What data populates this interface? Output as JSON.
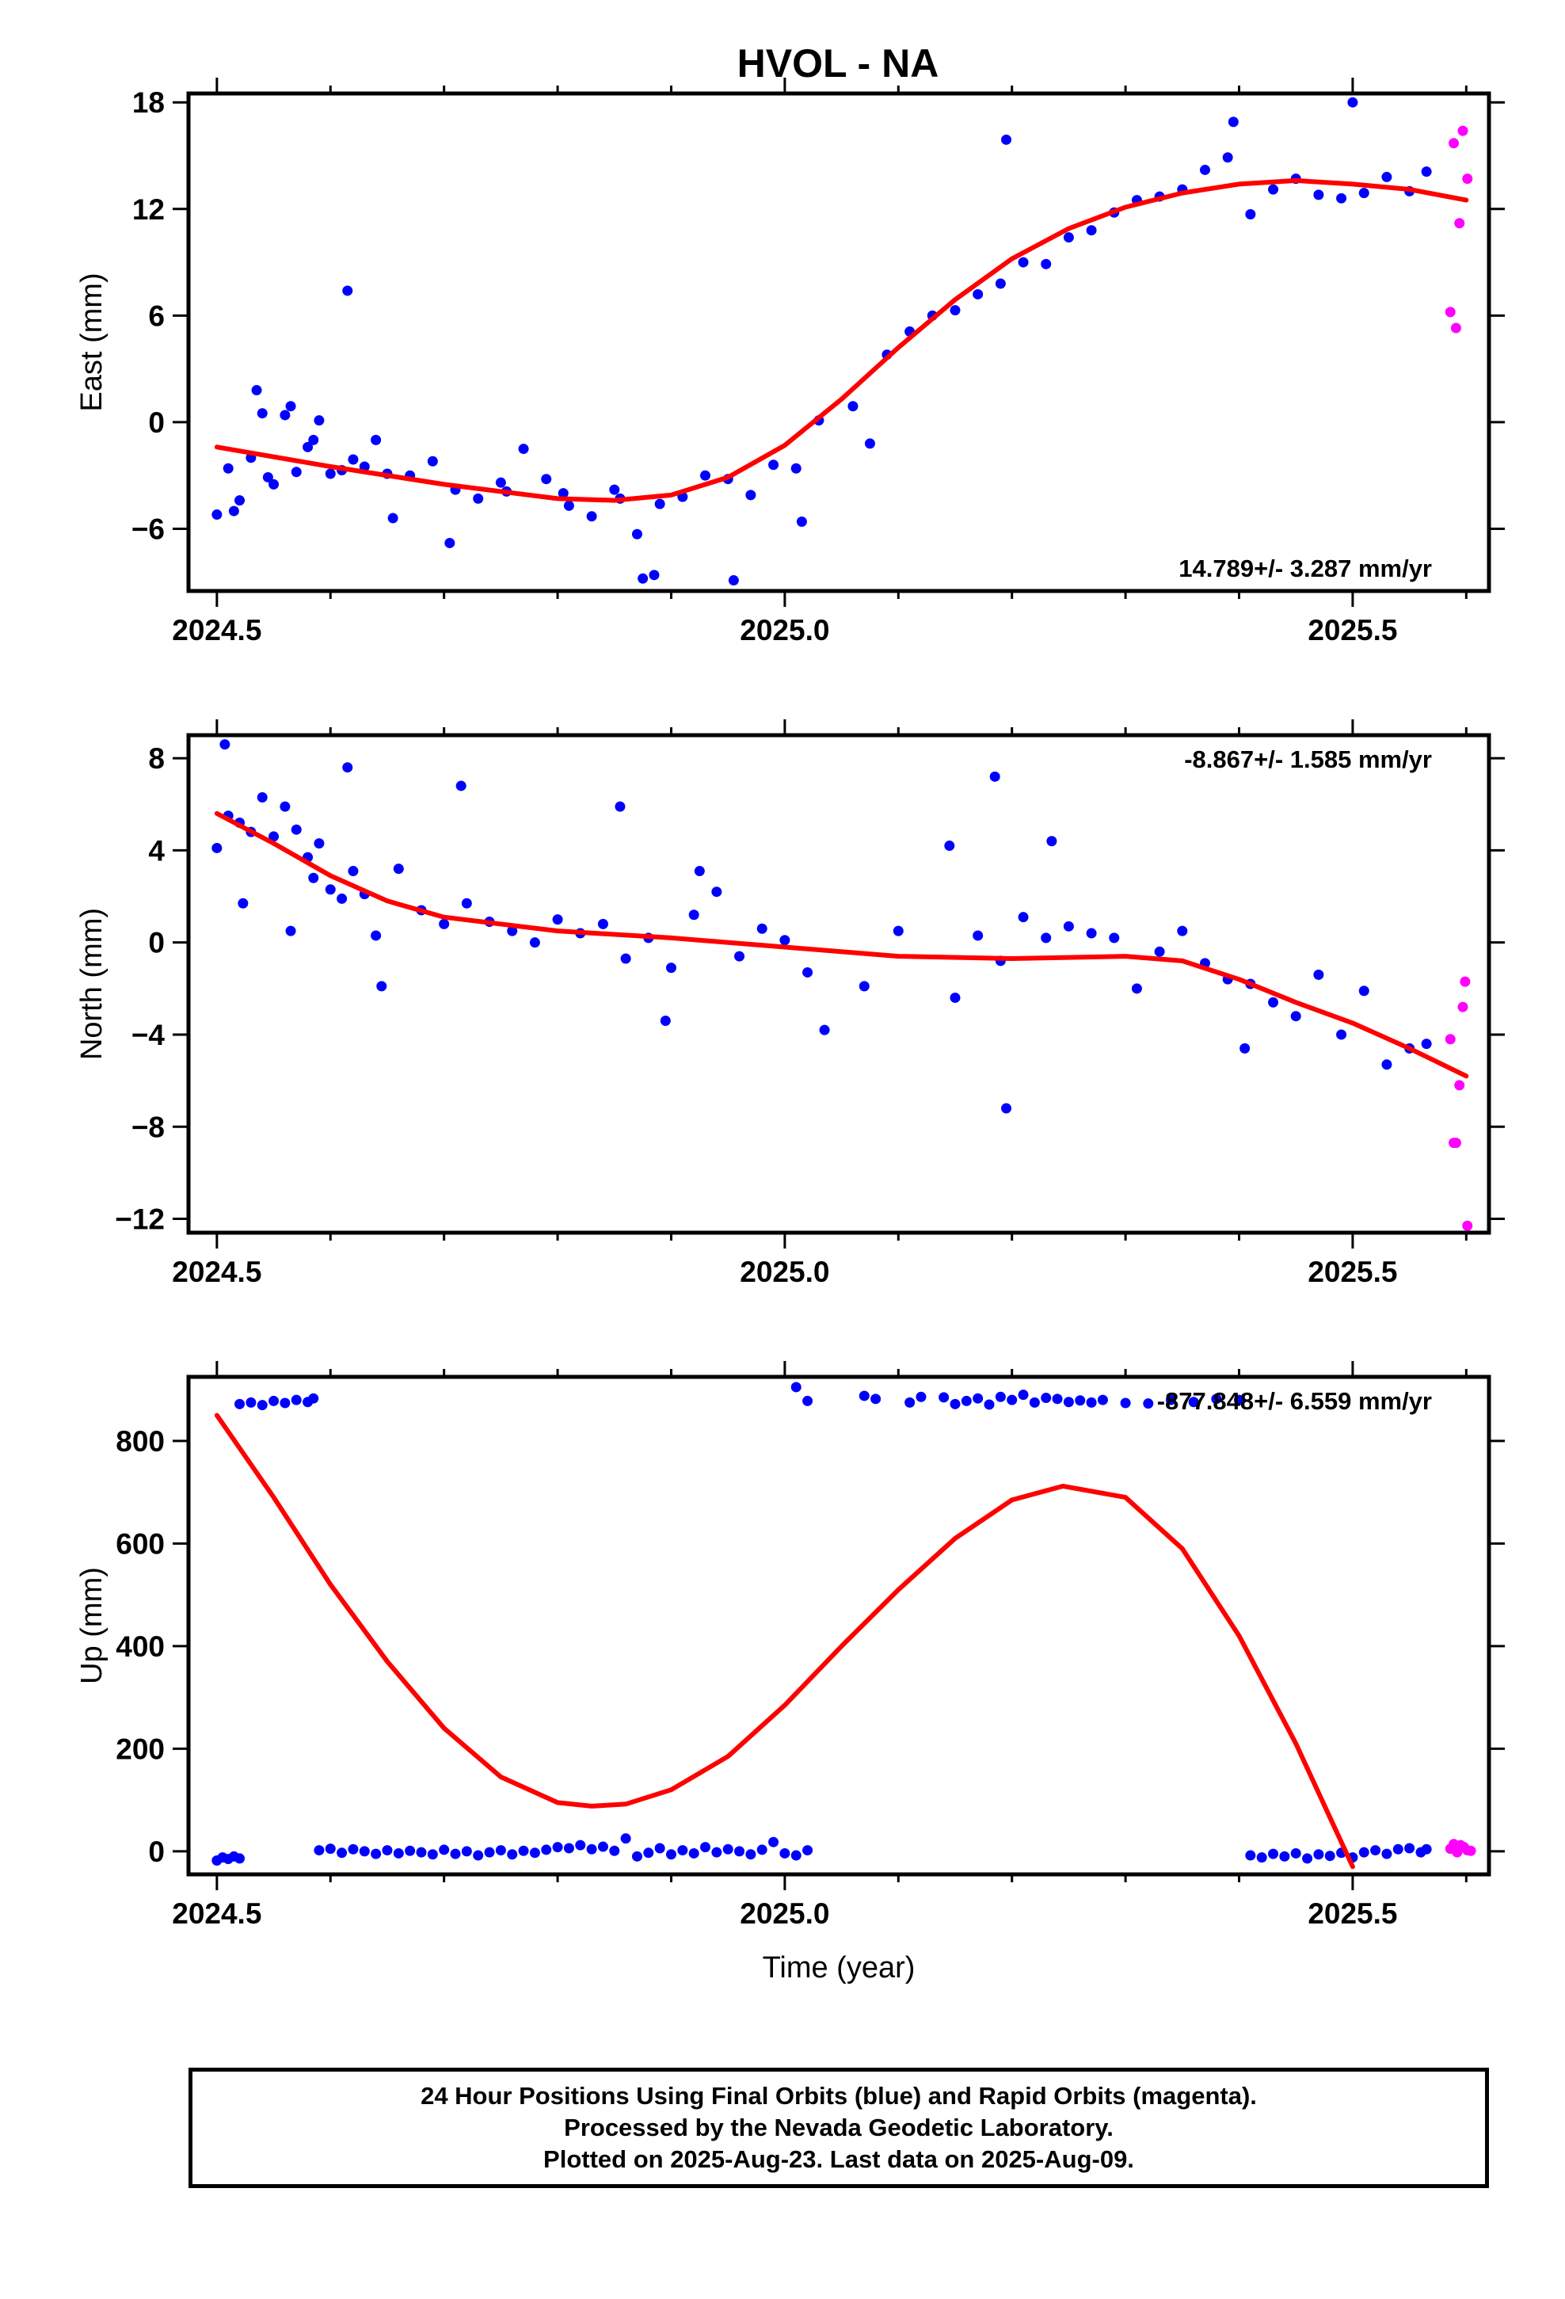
{
  "title": "HVOL - NA",
  "colors": {
    "final_orbit": "#0000ff",
    "rapid_orbit": "#ff00ff",
    "model": "#ff0000",
    "frame": "#000000"
  },
  "footer": {
    "line1": "24 Hour Positions Using Final Orbits (blue) and Rapid Orbits (magenta).",
    "line2": "Processed by the Nevada Geodetic Laboratory.",
    "line3": "Plotted on 2025-Aug-23. Last data on 2025-Aug-09."
  },
  "chart_data": [
    {
      "type": "scatter",
      "name_key": "east",
      "title": "HVOL - NA",
      "xlabel": "",
      "ylabel": "East (mm)",
      "xlim": [
        2024.475,
        2025.62
      ],
      "ylim": [
        -9.5,
        18.5
      ],
      "xticks": [
        2024.5,
        2025.0,
        2025.5
      ],
      "xtick_labels": [
        "2024.5",
        "2025.0",
        "2025.5"
      ],
      "yticks": [
        -6,
        0,
        6,
        12,
        18
      ],
      "ytick_labels": [
        "−6",
        "0",
        "6",
        "12",
        "18"
      ],
      "rate_text": "14.789+/- 3.287 mm/yr",
      "rate_position": "bottom-right",
      "final_orbits": {
        "x": [
          2024.5,
          2024.51,
          2024.52,
          2024.53,
          2024.54,
          2024.55,
          2024.56,
          2024.57,
          2024.58,
          2024.59,
          2024.6,
          2024.61,
          2024.62,
          2024.63,
          2024.64,
          2024.65,
          2024.67,
          2024.69,
          2024.71,
          2024.73,
          2024.75,
          2024.77,
          2024.79,
          2024.81,
          2024.83,
          2024.85,
          2024.87,
          2024.89,
          2024.91,
          2024.93,
          2024.95,
          2024.97,
          2024.99,
          2025.01,
          2025.03,
          2025.06,
          2025.09,
          2025.11,
          2025.13,
          2025.15,
          2025.17,
          2025.19,
          2025.21,
          2025.23,
          2025.25,
          2025.27,
          2025.29,
          2025.31,
          2025.33,
          2025.35,
          2025.37,
          2025.39,
          2025.41,
          2025.43,
          2025.45,
          2025.47,
          2025.49,
          2025.51,
          2025.53,
          2025.55,
          2025.565,
          2024.515,
          2024.535,
          2024.545,
          2024.565,
          2024.585,
          2024.615,
          2024.655,
          2024.705,
          2024.755,
          2024.805,
          2024.855,
          2024.875,
          2024.885,
          2024.955,
          2025.015,
          2025.075,
          2025.195,
          2025.395,
          2025.5
        ],
        "y": [
          -5.2,
          -2.6,
          -4.4,
          -2.0,
          0.5,
          -3.5,
          0.4,
          -2.8,
          -1.4,
          0.1,
          -2.9,
          -2.7,
          -2.1,
          -2.5,
          -1.0,
          -2.9,
          -3.0,
          -2.2,
          -3.8,
          -4.3,
          -3.4,
          -1.5,
          -3.2,
          -4.7,
          -5.3,
          -3.8,
          -6.3,
          -4.6,
          -4.2,
          -3.0,
          -3.2,
          -4.1,
          -2.4,
          -2.6,
          0.1,
          0.9,
          3.8,
          5.1,
          6.0,
          6.3,
          7.2,
          7.8,
          9.0,
          8.9,
          10.4,
          10.8,
          11.8,
          12.5,
          12.7,
          13.1,
          14.2,
          14.9,
          11.7,
          13.1,
          13.7,
          12.8,
          12.6,
          12.9,
          13.8,
          13.0,
          14.1,
          -5.0,
          1.8,
          -3.1,
          0.9,
          -1.0,
          7.4,
          -5.4,
          -6.8,
          -3.9,
          -4.0,
          -4.3,
          -8.8,
          -8.6,
          -8.9,
          -5.6,
          -1.2,
          15.9,
          16.9,
          18.0
        ]
      },
      "rapid_orbits": {
        "x": [
          2025.586,
          2025.589,
          2025.591,
          2025.594,
          2025.597,
          2025.601
        ],
        "y": [
          6.2,
          15.7,
          5.3,
          11.2,
          16.4,
          13.7
        ]
      },
      "model": {
        "x": [
          2024.5,
          2024.6,
          2024.7,
          2024.8,
          2024.85,
          2024.9,
          2024.95,
          2025.0,
          2025.05,
          2025.1,
          2025.15,
          2025.2,
          2025.25,
          2025.3,
          2025.35,
          2025.4,
          2025.45,
          2025.5,
          2025.55,
          2025.6
        ],
        "y": [
          -1.4,
          -2.5,
          -3.5,
          -4.3,
          -4.4,
          -4.1,
          -3.1,
          -1.3,
          1.3,
          4.2,
          6.9,
          9.2,
          10.9,
          12.1,
          12.9,
          13.4,
          13.6,
          13.4,
          13.1,
          12.5
        ]
      }
    },
    {
      "type": "scatter",
      "name_key": "north",
      "title": "",
      "xlabel": "",
      "ylabel": "North (mm)",
      "xlim": [
        2024.475,
        2025.62
      ],
      "ylim": [
        -12.6,
        9.0
      ],
      "xticks": [
        2024.5,
        2025.0,
        2025.5
      ],
      "xtick_labels": [
        "2024.5",
        "2025.0",
        "2025.5"
      ],
      "yticks": [
        -12,
        -8,
        -4,
        0,
        4,
        8
      ],
      "ytick_labels": [
        "−12",
        "−8",
        "−4",
        "0",
        "4",
        "8"
      ],
      "rate_text": "-8.867+/- 1.585 mm/yr",
      "rate_position": "top-right",
      "final_orbits": {
        "x": [
          2024.5,
          2024.51,
          2024.52,
          2024.53,
          2024.54,
          2024.55,
          2024.56,
          2024.57,
          2024.58,
          2024.59,
          2024.6,
          2024.61,
          2024.62,
          2024.63,
          2024.64,
          2024.66,
          2024.68,
          2024.7,
          2024.72,
          2024.74,
          2024.76,
          2024.78,
          2024.8,
          2024.82,
          2024.84,
          2024.86,
          2024.88,
          2024.9,
          2024.92,
          2024.94,
          2024.96,
          2024.98,
          2025.0,
          2025.02,
          2025.07,
          2025.1,
          2025.15,
          2025.17,
          2025.19,
          2025.21,
          2025.23,
          2025.25,
          2025.27,
          2025.29,
          2025.31,
          2025.33,
          2025.35,
          2025.37,
          2025.39,
          2025.41,
          2025.43,
          2025.45,
          2025.47,
          2025.49,
          2025.51,
          2025.53,
          2025.55,
          2025.565,
          2024.507,
          2024.523,
          2024.565,
          2024.585,
          2024.615,
          2024.645,
          2024.715,
          2024.855,
          2024.895,
          2024.925,
          2025.035,
          2025.145,
          2025.185,
          2025.195,
          2025.235,
          2025.405
        ],
        "y": [
          4.1,
          5.5,
          5.2,
          4.8,
          6.3,
          4.6,
          5.9,
          4.9,
          3.7,
          4.3,
          2.3,
          1.9,
          3.1,
          2.1,
          0.3,
          3.2,
          1.4,
          0.8,
          1.7,
          0.9,
          0.5,
          0.0,
          1.0,
          0.4,
          0.8,
          -0.7,
          0.2,
          -1.1,
          1.2,
          2.2,
          -0.6,
          0.6,
          0.1,
          -1.3,
          -1.9,
          0.5,
          -2.4,
          0.3,
          -0.8,
          1.1,
          0.2,
          0.7,
          0.4,
          0.2,
          -2.0,
          -0.4,
          0.5,
          -0.9,
          -1.6,
          -1.8,
          -2.6,
          -3.2,
          -1.4,
          -4.0,
          -2.1,
          -5.3,
          -4.6,
          -4.4,
          8.6,
          1.7,
          0.5,
          2.8,
          7.6,
          -1.9,
          6.8,
          5.9,
          -3.4,
          3.1,
          -3.8,
          4.2,
          7.2,
          -7.2,
          4.4,
          -4.6
        ]
      },
      "rapid_orbits": {
        "x": [
          2025.586,
          2025.589,
          2025.591,
          2025.594,
          2025.597,
          2025.599,
          2025.601
        ],
        "y": [
          -4.2,
          -8.7,
          -8.7,
          -6.2,
          -2.8,
          -1.7,
          -12.3
        ]
      },
      "model": {
        "x": [
          2024.5,
          2024.55,
          2024.6,
          2024.65,
          2024.7,
          2024.8,
          2024.9,
          2025.0,
          2025.1,
          2025.2,
          2025.3,
          2025.35,
          2025.4,
          2025.45,
          2025.5,
          2025.55,
          2025.6
        ],
        "y": [
          5.6,
          4.3,
          2.9,
          1.8,
          1.1,
          0.5,
          0.2,
          -0.2,
          -0.6,
          -0.7,
          -0.6,
          -0.8,
          -1.6,
          -2.6,
          -3.5,
          -4.6,
          -5.8
        ]
      }
    },
    {
      "type": "scatter",
      "name_key": "up",
      "title": "",
      "xlabel": "Time (year)",
      "ylabel": "Up (mm)",
      "xlim": [
        2024.475,
        2025.62
      ],
      "ylim": [
        -45,
        925
      ],
      "xticks": [
        2024.5,
        2025.0,
        2025.5
      ],
      "xtick_labels": [
        "2024.5",
        "2025.0",
        "2025.5"
      ],
      "yticks": [
        0,
        200,
        400,
        600,
        800
      ],
      "ytick_labels": [
        "0",
        "200",
        "400",
        "600",
        "800"
      ],
      "rate_text": "-877.848+/- 6.559 mm/yr",
      "rate_position": "top-right",
      "final_orbits": {
        "x": [
          2024.5,
          2024.505,
          2024.51,
          2024.515,
          2024.52,
          2024.52,
          2024.53,
          2024.54,
          2024.55,
          2024.56,
          2024.57,
          2024.58,
          2024.585,
          2024.59,
          2024.6,
          2024.61,
          2024.62,
          2024.63,
          2024.64,
          2024.65,
          2024.66,
          2024.67,
          2024.68,
          2024.69,
          2024.7,
          2024.71,
          2024.72,
          2024.73,
          2024.74,
          2024.75,
          2024.76,
          2024.77,
          2024.78,
          2024.79,
          2024.8,
          2024.81,
          2024.82,
          2024.83,
          2024.84,
          2024.85,
          2024.86,
          2024.87,
          2024.88,
          2024.89,
          2024.9,
          2024.91,
          2024.92,
          2024.93,
          2024.94,
          2024.95,
          2024.96,
          2024.97,
          2024.98,
          2024.99,
          2025.0,
          2025.01,
          2025.02,
          2025.01,
          2025.02,
          2025.07,
          2025.08,
          2025.11,
          2025.12,
          2025.14,
          2025.15,
          2025.16,
          2025.17,
          2025.18,
          2025.19,
          2025.2,
          2025.21,
          2025.22,
          2025.23,
          2025.24,
          2025.25,
          2025.26,
          2025.27,
          2025.28,
          2025.3,
          2025.32,
          2025.34,
          2025.36,
          2025.38,
          2025.4,
          2025.41,
          2025.42,
          2025.43,
          2025.44,
          2025.45,
          2025.46,
          2025.47,
          2025.48,
          2025.49,
          2025.5,
          2025.51,
          2025.52,
          2025.53,
          2025.54,
          2025.55,
          2025.56,
          2025.565
        ],
        "y": [
          -18,
          -12,
          -15,
          -10,
          -14,
          872,
          875,
          870,
          878,
          874,
          880,
          876,
          883,
          2,
          5,
          -3,
          4,
          0,
          -5,
          2,
          -4,
          1,
          -2,
          -6,
          3,
          -5,
          0,
          -8,
          -2,
          2,
          -6,
          1,
          -3,
          3,
          8,
          6,
          12,
          4,
          9,
          1,
          25,
          -10,
          -3,
          6,
          -6,
          2,
          -4,
          8,
          -2,
          4,
          0,
          -6,
          3,
          18,
          -4,
          -8,
          2,
          905,
          878,
          888,
          882,
          875,
          886,
          885,
          872,
          878,
          883,
          871,
          886,
          880,
          890,
          875,
          884,
          882,
          876,
          879,
          875,
          880,
          874,
          873,
          880,
          876,
          882,
          880,
          -8,
          -12,
          -5,
          -10,
          -4,
          -14,
          -6,
          -9,
          -3,
          -12,
          -2,
          2,
          -5,
          4,
          6,
          -2,
          4
        ]
      },
      "rapid_orbits": {
        "x": [
          2025.586,
          2025.589,
          2025.592,
          2025.595,
          2025.598,
          2025.601,
          2025.604
        ],
        "y": [
          5,
          14,
          -2,
          12,
          8,
          2,
          1
        ]
      },
      "model": {
        "x": [
          2024.5,
          2024.55,
          2024.6,
          2024.65,
          2024.7,
          2024.75,
          2024.8,
          2024.83,
          2024.86,
          2024.9,
          2024.95,
          2025.0,
          2025.05,
          2025.1,
          2025.15,
          2025.2,
          2025.245,
          2025.3,
          2025.35,
          2025.4,
          2025.45,
          2025.5
        ],
        "y": [
          850,
          690,
          520,
          370,
          240,
          145,
          95,
          88,
          92,
          120,
          185,
          285,
          400,
          510,
          610,
          685,
          712,
          690,
          590,
          420,
          210,
          -30
        ]
      }
    }
  ]
}
